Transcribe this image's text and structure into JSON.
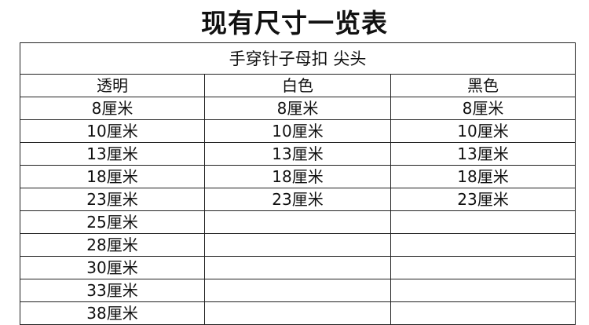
{
  "title": "现有尺寸一览表",
  "table": {
    "caption": "手穿针子母扣 尖头",
    "columns": [
      "透明",
      "白色",
      "黑色"
    ],
    "rows": [
      [
        "8厘米",
        "8厘米",
        "8厘米"
      ],
      [
        "10厘米",
        "10厘米",
        "10厘米"
      ],
      [
        "13厘米",
        "13厘米",
        "13厘米"
      ],
      [
        "18厘米",
        "18厘米",
        "18厘米"
      ],
      [
        "23厘米",
        "23厘米",
        "23厘米"
      ],
      [
        "25厘米",
        "",
        ""
      ],
      [
        "28厘米",
        "",
        ""
      ],
      [
        "30厘米",
        "",
        ""
      ],
      [
        "33厘米",
        "",
        ""
      ],
      [
        "38厘米",
        "",
        ""
      ]
    ]
  }
}
